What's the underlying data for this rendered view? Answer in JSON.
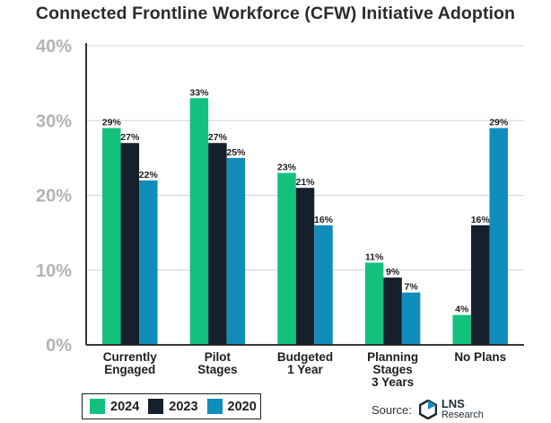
{
  "chart_data": {
    "type": "bar",
    "title": "Connected Frontline Workforce (CFW) Initiative Adoption",
    "categories": [
      [
        "Currently",
        "Engaged"
      ],
      [
        "Pilot",
        "Stages"
      ],
      [
        "Budgeted",
        "1 Year"
      ],
      [
        "Planning",
        "Stages",
        "3 Years"
      ],
      [
        "No Plans"
      ]
    ],
    "series": [
      {
        "name": "2024",
        "color": "#13c17f",
        "values": [
          29,
          33,
          23,
          11,
          4
        ]
      },
      {
        "name": "2023",
        "color": "#15202c",
        "values": [
          27,
          27,
          21,
          9,
          16
        ]
      },
      {
        "name": "2020",
        "color": "#118dbb",
        "values": [
          22,
          25,
          16,
          7,
          29
        ]
      }
    ],
    "ylim": [
      0,
      40
    ],
    "yticks": [
      "0%",
      "10%",
      "20%",
      "30%",
      "40%"
    ],
    "value_suffix": "%",
    "grid": true,
    "legend_position": "bottom-left"
  },
  "source": {
    "label": "Source:",
    "brand": "LNS",
    "brand_sub": "Research"
  }
}
